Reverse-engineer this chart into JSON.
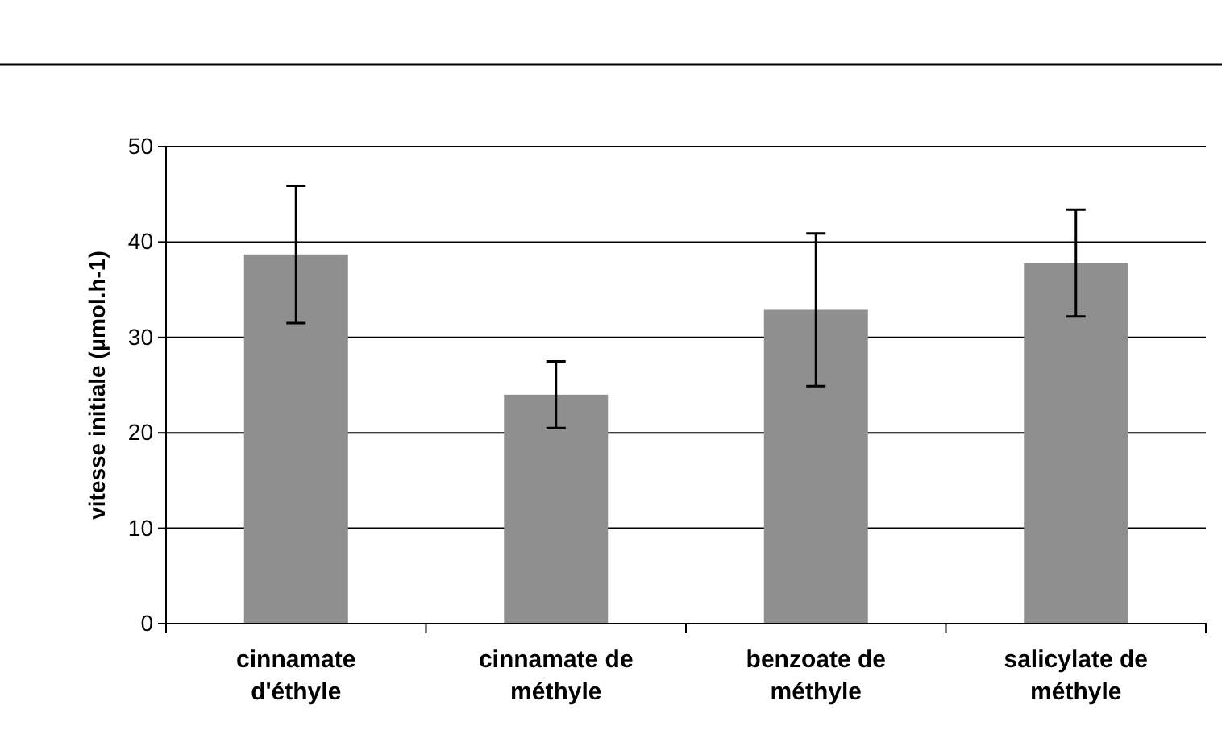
{
  "chart_data": {
    "type": "bar",
    "ylabel": "vitesse initiale (µmol.h-1)",
    "categories": [
      "cinnamate d'éthyle",
      "cinnamate de méthyle",
      "benzoate de méthyle",
      "salicylate de méthyle"
    ],
    "values": [
      38.7,
      24,
      32.9,
      37.8
    ],
    "errors": [
      7.2,
      3.5,
      8,
      5.6
    ],
    "color": "#8f8f8f",
    "ylim": [
      0,
      50
    ],
    "yticks": [
      0,
      10,
      20,
      30,
      40,
      50
    ],
    "grid": "y"
  }
}
